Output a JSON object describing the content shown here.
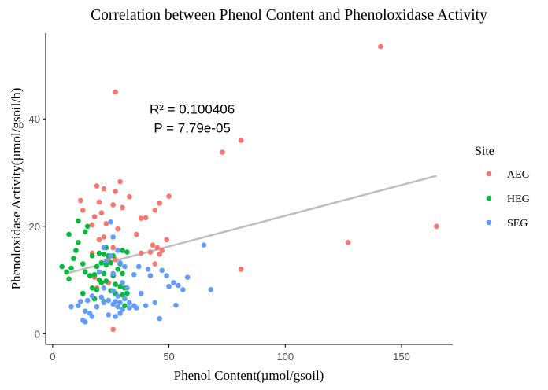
{
  "chart_data": {
    "type": "scatter",
    "title": "Correlation between Phenol Content and Phenoloxidase Activity",
    "xlabel": "Phenol Content(µmol/gsoil)",
    "ylabel": "Phenoloxidase Activity(µmol/gsoil/h)",
    "xlim": [
      -3,
      172
    ],
    "ylim": [
      -2,
      56
    ],
    "x_ticks": [
      0,
      50,
      100,
      150
    ],
    "y_ticks": [
      0,
      20,
      40
    ],
    "grid": false,
    "legend": {
      "title": "Site",
      "position": "right",
      "entries": [
        {
          "name": "AEG",
          "color": "#F8766D"
        },
        {
          "name": "HEG",
          "color": "#00BA38"
        },
        {
          "name": "SEG",
          "color": "#619CFF"
        }
      ]
    },
    "annotations": {
      "r2_text": "R² = 0.100406",
      "p_text": "P = 7.79e-05",
      "anchor_x": 60,
      "r2_y": 41,
      "p_y": 37.5
    },
    "regression_line": {
      "color": "#BEBEBE",
      "x": [
        5,
        165
      ],
      "y": [
        11.1,
        29.4
      ]
    },
    "series": [
      {
        "name": "AEG",
        "color": "#F8766D",
        "points": [
          [
            141,
            53.5
          ],
          [
            27,
            45
          ],
          [
            81,
            36
          ],
          [
            73,
            33.8
          ],
          [
            165,
            20
          ],
          [
            127,
            17
          ],
          [
            81,
            12
          ],
          [
            29,
            28.3
          ],
          [
            19,
            27.5
          ],
          [
            22,
            27
          ],
          [
            27,
            26.5
          ],
          [
            33,
            25.5
          ],
          [
            50,
            25.6
          ],
          [
            20,
            24.5
          ],
          [
            12,
            24.8
          ],
          [
            26,
            24
          ],
          [
            46,
            24.3
          ],
          [
            30,
            23.5
          ],
          [
            44,
            23
          ],
          [
            21,
            22.5
          ],
          [
            18,
            21.8
          ],
          [
            40,
            21.6
          ],
          [
            38,
            21.5
          ],
          [
            13,
            23
          ],
          [
            23,
            20.5
          ],
          [
            17,
            20.3
          ],
          [
            28,
            19.5
          ],
          [
            36,
            18.5
          ],
          [
            22,
            18
          ],
          [
            20,
            17.5
          ],
          [
            49,
            17.5
          ],
          [
            43,
            16.5
          ],
          [
            26,
            16
          ],
          [
            45,
            16
          ],
          [
            47,
            15.5
          ],
          [
            42,
            15.2
          ],
          [
            17,
            15
          ],
          [
            38,
            15
          ],
          [
            24,
            14
          ],
          [
            27,
            13.8
          ],
          [
            46,
            14.8
          ],
          [
            44,
            13
          ],
          [
            18,
            10.5
          ],
          [
            24,
            9.5
          ],
          [
            19,
            8.5
          ],
          [
            26,
            0.8
          ]
        ]
      },
      {
        "name": "HEG",
        "color": "#00BA38",
        "points": [
          [
            11,
            21
          ],
          [
            15,
            20
          ],
          [
            14,
            19
          ],
          [
            7,
            18.5
          ],
          [
            11,
            17
          ],
          [
            10,
            15.5
          ],
          [
            23,
            16
          ],
          [
            9,
            14
          ],
          [
            17,
            14.5
          ],
          [
            20,
            15
          ],
          [
            22,
            14.8
          ],
          [
            24,
            14.5
          ],
          [
            26,
            14.5
          ],
          [
            30,
            15.5
          ],
          [
            32,
            15.2
          ],
          [
            13,
            13
          ],
          [
            19,
            12.5
          ],
          [
            21,
            13.2
          ],
          [
            23,
            12.8
          ],
          [
            25,
            13.2
          ],
          [
            28,
            12
          ],
          [
            29,
            13
          ],
          [
            8,
            12.2
          ],
          [
            4,
            12.5
          ],
          [
            6,
            11.5
          ],
          [
            14,
            11.5
          ],
          [
            18,
            11
          ],
          [
            22,
            11.2
          ],
          [
            26,
            10.8
          ],
          [
            30,
            11.2
          ],
          [
            16,
            10.8
          ],
          [
            7,
            10.2
          ],
          [
            20,
            10
          ],
          [
            23,
            9.8
          ],
          [
            27,
            9.2
          ],
          [
            21,
            9.5
          ],
          [
            29,
            8.8
          ],
          [
            31,
            8.5
          ],
          [
            17,
            8.5
          ],
          [
            19,
            8.2
          ],
          [
            25,
            8
          ],
          [
            13,
            7.5
          ],
          [
            27,
            7.5
          ],
          [
            30,
            7.2
          ],
          [
            32,
            7.5
          ],
          [
            18,
            6.5
          ],
          [
            22,
            6
          ],
          [
            31,
            5.2
          ]
        ]
      },
      {
        "name": "SEG",
        "color": "#619CFF",
        "points": [
          [
            25,
            20.8
          ],
          [
            26,
            18
          ],
          [
            22,
            16
          ],
          [
            28,
            15.5
          ],
          [
            65,
            16.5
          ],
          [
            23,
            13.5
          ],
          [
            25,
            14.5
          ],
          [
            29,
            13.2
          ],
          [
            31,
            12.5
          ],
          [
            37,
            12.5
          ],
          [
            41,
            12
          ],
          [
            20,
            11.5
          ],
          [
            26,
            11.2
          ],
          [
            35,
            11
          ],
          [
            42,
            10.8
          ],
          [
            47,
            11.8
          ],
          [
            49,
            10.8
          ],
          [
            58,
            10.5
          ],
          [
            52,
            9.5
          ],
          [
            54,
            9
          ],
          [
            30,
            9.5
          ],
          [
            32,
            8.5
          ],
          [
            22,
            8.5
          ],
          [
            26,
            8
          ],
          [
            28,
            7
          ],
          [
            38,
            7.5
          ],
          [
            50,
            8.8
          ],
          [
            56,
            8.2
          ],
          [
            68,
            8.2
          ],
          [
            17,
            7
          ],
          [
            21,
            6.8
          ],
          [
            24,
            6.2
          ],
          [
            27,
            6
          ],
          [
            29,
            5.8
          ],
          [
            31,
            6.5
          ],
          [
            33,
            5.8
          ],
          [
            35,
            5.2
          ],
          [
            12,
            6
          ],
          [
            11,
            5.2
          ],
          [
            15,
            6.2
          ],
          [
            19,
            5
          ],
          [
            22,
            5.8
          ],
          [
            26,
            5.5
          ],
          [
            28,
            5
          ],
          [
            30,
            4.5
          ],
          [
            33,
            4.8
          ],
          [
            36,
            4.8
          ],
          [
            40,
            5.2
          ],
          [
            44,
            5.8
          ],
          [
            53,
            5.3
          ],
          [
            8,
            5
          ],
          [
            14,
            4.2
          ],
          [
            16,
            3.8
          ],
          [
            24,
            3.5
          ],
          [
            27,
            3.2
          ],
          [
            29,
            3.8
          ],
          [
            17,
            3.2
          ],
          [
            13,
            2.5
          ],
          [
            46,
            2.8
          ],
          [
            14,
            2.2
          ]
        ]
      }
    ]
  }
}
